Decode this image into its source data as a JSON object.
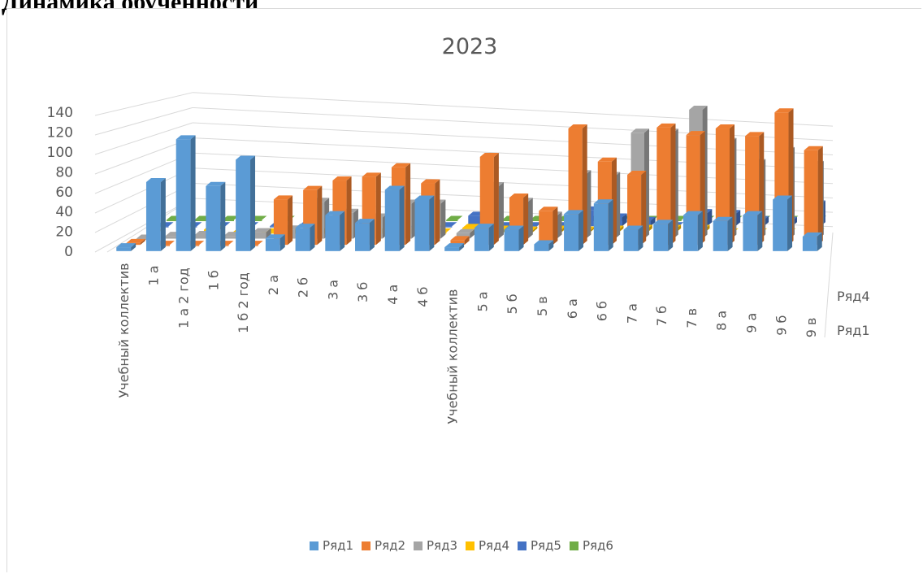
{
  "document": {
    "heading": "Динамика обученности"
  },
  "colors": {
    "series": [
      "#5B9BD5",
      "#ED7D31",
      "#A5A5A5",
      "#FFC000",
      "#4472C4",
      "#70AD47"
    ],
    "gridline": "#d9d9d9",
    "axis_text": "#595959"
  },
  "chart_data": {
    "type": "bar",
    "subtype": "3d-column",
    "title": "2023",
    "categories": [
      "Учебный коллектив",
      "1 а",
      "1 а 2 год",
      "1 б",
      "1 б 2 год",
      "2 а",
      "2 б",
      "3 а",
      "3 б",
      "4 а",
      "4 б",
      "Учебный коллектив",
      "5 а",
      "5 б",
      "5 в",
      "6 а",
      "6 б",
      "7 а",
      "7 б",
      "7 в",
      "8 а",
      "9 а",
      "9 б",
      "9 в"
    ],
    "series": [
      {
        "name": "Ряд1",
        "values": [
          4,
          71,
          115,
          67,
          94,
          13,
          24,
          37,
          29,
          63,
          53,
          4,
          24,
          22,
          7,
          38,
          49,
          22,
          28,
          37,
          31,
          37,
          53,
          15
        ]
      },
      {
        "name": "Ряд2",
        "values": [
          2,
          0,
          0,
          0,
          0,
          48,
          58,
          68,
          72,
          82,
          65,
          5,
          93,
          50,
          36,
          123,
          88,
          74,
          124,
          116,
          123,
          115,
          140,
          100
        ]
      },
      {
        "name": "Ряд3",
        "values": [
          0,
          3,
          4,
          3,
          7,
          10,
          40,
          28,
          23,
          38,
          38,
          6,
          57,
          40,
          25,
          70,
          68,
          115,
          115,
          140,
          105,
          82,
          95,
          80
        ]
      },
      {
        "name": "Ряд4",
        "values": [
          0,
          0,
          3,
          0,
          0,
          0,
          0,
          0,
          0,
          0,
          0,
          5,
          3,
          2,
          3,
          2,
          3,
          4,
          4,
          4,
          0,
          0,
          0,
          0
        ]
      },
      {
        "name": "Ряд5",
        "values": [
          0,
          0,
          0,
          0,
          0,
          0,
          0,
          0,
          0,
          0,
          0,
          12,
          0,
          0,
          0,
          18,
          10,
          6,
          0,
          15,
          14,
          7,
          6,
          25
        ]
      },
      {
        "name": "Ряд6",
        "values": [
          0,
          0,
          0,
          0,
          0,
          0,
          0,
          0,
          0,
          0,
          0,
          0,
          0,
          0,
          0,
          0,
          0,
          0,
          0,
          0,
          0,
          0,
          0,
          0
        ]
      }
    ],
    "ylim": [
      0,
      140
    ],
    "yticks": [
      0,
      20,
      40,
      60,
      80,
      100,
      120,
      140
    ],
    "depth_axis_labels": [
      "Ряд1",
      "Ряд4"
    ],
    "grid": true,
    "legend_position": "bottom"
  }
}
